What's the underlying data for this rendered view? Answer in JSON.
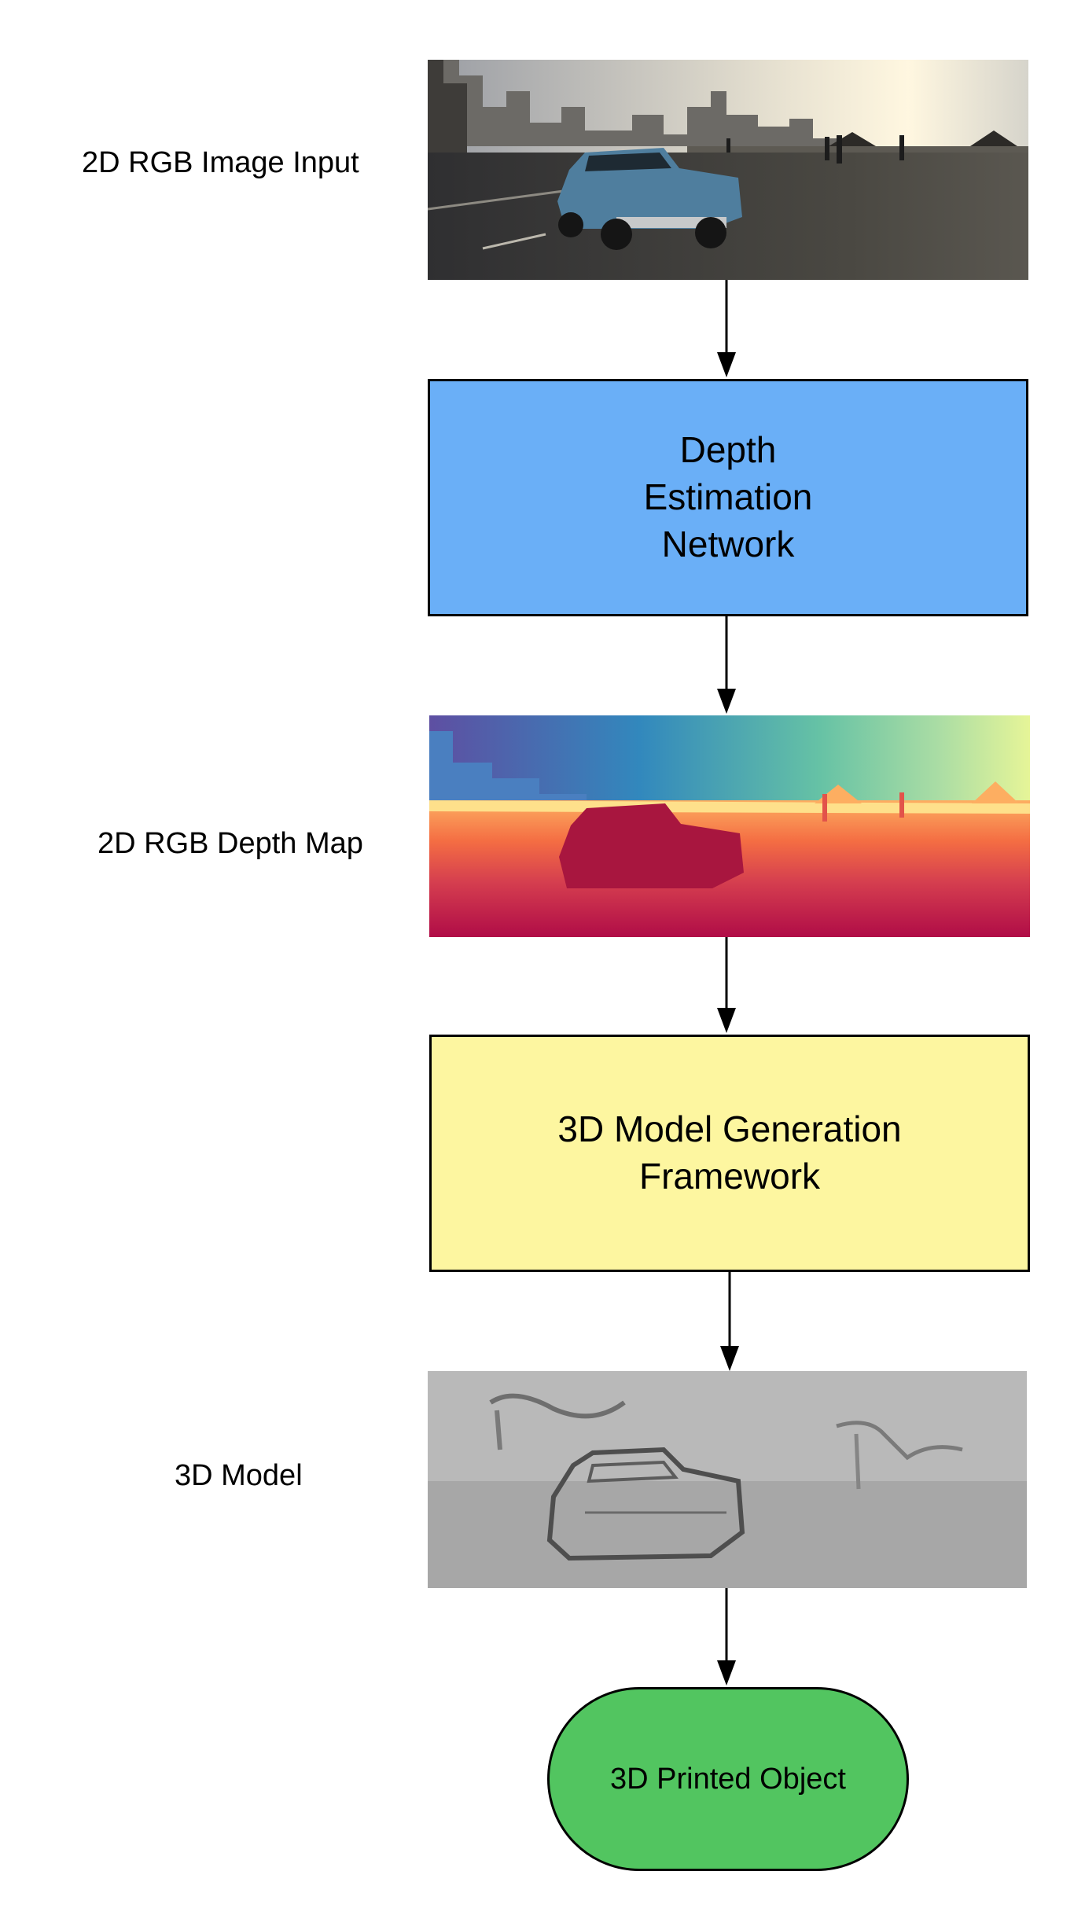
{
  "diagram": {
    "nodes": [
      {
        "id": "rgb-input",
        "kind": "image",
        "caption": "2D RGB Image Input",
        "depicts": "street-scene-photo"
      },
      {
        "id": "depth-net",
        "kind": "process",
        "text": "Depth\nEstimation\nNetwork",
        "fill": "#6aaff7"
      },
      {
        "id": "depth-map",
        "kind": "image",
        "caption": "2D RGB Depth Map",
        "depicts": "depth-map-heatmap"
      },
      {
        "id": "model-gen",
        "kind": "process",
        "text": "3D Model Generation\nFramework",
        "fill": "#fdf6a0"
      },
      {
        "id": "model-3d",
        "kind": "image",
        "caption": "3D Model",
        "depicts": "grey-relief-render"
      },
      {
        "id": "printed",
        "kind": "terminal",
        "text": "3D Printed Object",
        "fill": "#52c560"
      }
    ],
    "edges": [
      {
        "from": "rgb-input",
        "to": "depth-net"
      },
      {
        "from": "depth-net",
        "to": "depth-map"
      },
      {
        "from": "depth-map",
        "to": "model-gen"
      },
      {
        "from": "model-gen",
        "to": "model-3d"
      },
      {
        "from": "model-3d",
        "to": "printed"
      }
    ]
  }
}
